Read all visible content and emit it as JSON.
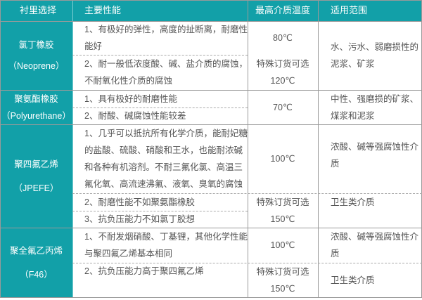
{
  "header": {
    "col1": "衬里选择",
    "col2": "主要性能",
    "col3": "最高介质温度",
    "col4": "适用范围"
  },
  "rows": [
    {
      "name": "氯丁橡胶",
      "code": "（Neoprene）",
      "props": [
        "1、有极好的弹性，高度的扯断离，耐磨性能好",
        "2、耐一般低浓度酸、碱、盐介质的腐蚀，不耐氧化性介质的腐蚀"
      ],
      "temps": [
        "80℃",
        "特殊订货可选",
        "120℃"
      ],
      "uses": [
        "水、污水、弱磨损性的泥浆、矿浆"
      ]
    },
    {
      "name": "聚氨酯橡胶",
      "code": "（Polyurethane）",
      "props": [
        "1、具有极好的耐磨性能",
        "2、耐酸、碱腐蚀性能较差"
      ],
      "temps": [
        "70℃"
      ],
      "uses": [
        "中性、强磨损的矿浆、煤浆和泥浆"
      ]
    },
    {
      "name": "聚四氟乙烯",
      "code": "（JPEFE）",
      "props": [
        "1、几乎可以抵抗所有化学介质，能耐妃糖的盐酸、硫酸、硝酸和王水，也能耐浓碱和各种有机溶剂。不耐三氟化氯、高温三氟化氧、高流速沸氟、液氧、臭氧的腐蚀",
        "2、耐磨性能不如聚氨酯橡胶",
        "3、抗负压能力不如氯丁胶想"
      ],
      "temps": [
        "100℃",
        "特殊订货可选",
        "150℃"
      ],
      "uses": [
        "浓酸、碱等强腐蚀性介质",
        "卫生类介质"
      ]
    },
    {
      "name": "聚全氟乙丙烯",
      "code": "（F46）",
      "props": [
        "1、不耐发烟硝酸、丁基锂，其他化学性能与聚四氟乙烯基本相同",
        "2、抗负压能力高于聚四氟乙烯"
      ],
      "temps": [
        "100℃",
        "特殊订货可选",
        "150℃"
      ],
      "uses": [
        "浓酸、碱等强腐蚀性介质",
        "卫生类介质"
      ]
    }
  ],
  "colors": {
    "accent": "#12a0a8",
    "text": "#555555",
    "border": "#9a9a9a"
  }
}
